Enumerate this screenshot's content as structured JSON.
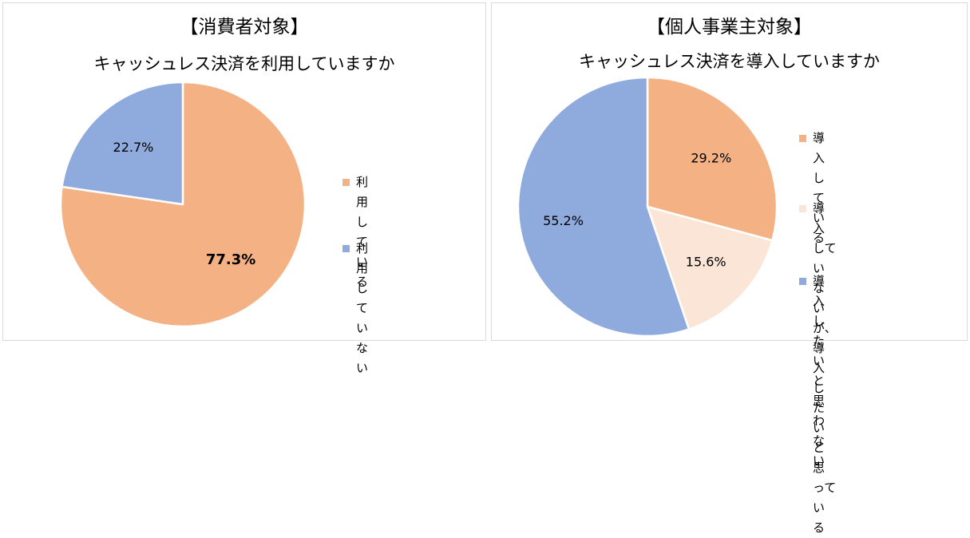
{
  "chart_data": [
    {
      "type": "pie",
      "title": "【消費者対象】",
      "subtitle": "キャッシュレス決済を利用していますか",
      "slices": [
        {
          "label": "利用している",
          "value": 77.3,
          "display": "77.3%",
          "color": "#F4B183",
          "bold": true
        },
        {
          "label": "利用していない",
          "value": 22.7,
          "display": "22.7%",
          "color": "#8FAADC",
          "bold": false
        }
      ],
      "legend": "right"
    },
    {
      "type": "pie",
      "title": "【個人事業主対象】",
      "subtitle": "キャッシュレス決済を導入していますか",
      "slices": [
        {
          "label": "導入している",
          "value": 29.2,
          "display": "29.2%",
          "color": "#F4B183",
          "bold": false
        },
        {
          "label": "導入していないが、導入\nしたいと思っている",
          "value": 15.6,
          "display": "15.6%",
          "color": "#FBE5D6",
          "bold": false
        },
        {
          "label": "導入したいと思わない",
          "value": 55.2,
          "display": "55.2%",
          "color": "#8FAADC",
          "bold": false
        }
      ],
      "legend": "right"
    }
  ]
}
